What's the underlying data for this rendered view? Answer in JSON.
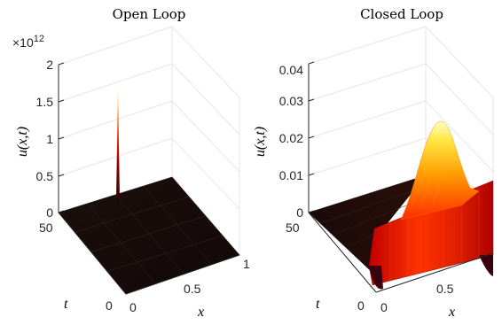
{
  "chart_data": [
    {
      "type": "surface",
      "title": "Open Loop",
      "xlabel": "x",
      "ylabel": "t",
      "zlabel": "u(x,t)",
      "xlim": [
        0,
        1
      ],
      "ylim": [
        0,
        50
      ],
      "zlim": [
        0,
        2000000000000.0
      ],
      "x_ticks": [
        "0",
        "0.5",
        "1"
      ],
      "y_ticks": [
        "0",
        "50"
      ],
      "z_ticks": [
        "0",
        "0.5",
        "1",
        "1.5",
        "2"
      ],
      "z_exponent": "×10",
      "z_exponent_power": "12",
      "colormap": "hot",
      "grid": true,
      "description_values": [
        {
          "x": 0.0,
          "t": 50,
          "u": 1600000000000.0
        },
        {
          "x": 0.0,
          "t": 45,
          "u": 300000000000.0
        },
        {
          "x": 0.5,
          "t": 25,
          "u": 0
        },
        {
          "x": 1.0,
          "t": 0,
          "u": 0
        }
      ]
    },
    {
      "type": "surface",
      "title": "Closed Loop",
      "xlabel": "x",
      "ylabel": "t",
      "zlabel": "u(x,t)",
      "xlim": [
        0,
        1
      ],
      "ylim": [
        0,
        50
      ],
      "zlim": [
        0,
        0.04
      ],
      "x_ticks": [
        "0",
        "0.5",
        "1"
      ],
      "y_ticks": [
        "0",
        "50"
      ],
      "z_ticks": [
        "0",
        "0.01",
        "0.02",
        "0.03",
        "0.04"
      ],
      "colormap": "hot",
      "grid": true,
      "description_values": [
        {
          "x": 0.0,
          "t": 50,
          "u": 0.0
        },
        {
          "x": 0.5,
          "t": 0,
          "u": 0.03
        },
        {
          "x": 0.8,
          "t": 0,
          "u": 0.005
        },
        {
          "x": 1.0,
          "t": 0,
          "u": 0.01
        }
      ]
    }
  ]
}
